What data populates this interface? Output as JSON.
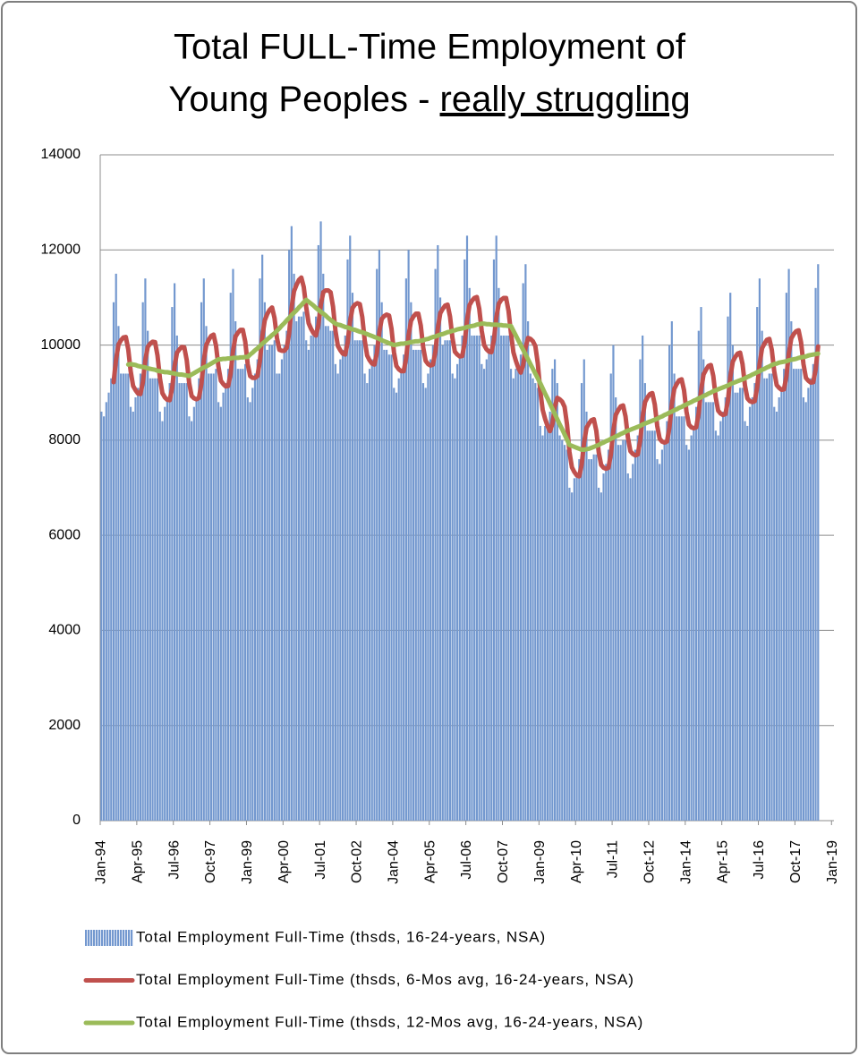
{
  "chart_data": {
    "type": "bar",
    "title": [
      "Total FULL-Time Employment of",
      "Young Peoples - "
    ],
    "title_underlined": "really struggling",
    "legend": "bottom",
    "grid": true,
    "ylim": [
      0,
      14000
    ],
    "yticks": [
      0,
      2000,
      4000,
      6000,
      8000,
      10000,
      12000,
      14000
    ],
    "categories": [
      "Jan-94",
      null,
      null,
      null,
      null,
      null,
      null,
      null,
      null,
      null,
      null,
      null,
      null,
      null,
      null,
      "Apr-95",
      null,
      null,
      null,
      null,
      null,
      null,
      null,
      null,
      null,
      null,
      null,
      null,
      null,
      null,
      "Jul-96",
      null,
      null,
      null,
      null,
      null,
      null,
      null,
      null,
      null,
      null,
      null,
      null,
      null,
      null,
      "Oct-97",
      null,
      null,
      null,
      null,
      null,
      null,
      null,
      null,
      null,
      null,
      null,
      null,
      null,
      null,
      "Jan-99",
      null,
      null,
      null,
      null,
      null,
      null,
      null,
      null,
      null,
      null,
      null,
      null,
      null,
      null,
      "Apr-00",
      null,
      null,
      null,
      null,
      null,
      null,
      null,
      null,
      null,
      null,
      null,
      null,
      null,
      null,
      "Jul-01",
      null,
      null,
      null,
      null,
      null,
      null,
      null,
      null,
      null,
      null,
      null,
      null,
      null,
      null,
      "Oct-02",
      null,
      null,
      null,
      null,
      null,
      null,
      null,
      null,
      null,
      null,
      null,
      null,
      null,
      null,
      "Jan-04",
      null,
      null,
      null,
      null,
      null,
      null,
      null,
      null,
      null,
      null,
      null,
      null,
      null,
      null,
      "Apr-05",
      null,
      null,
      null,
      null,
      null,
      null,
      null,
      null,
      null,
      null,
      null,
      null,
      null,
      null,
      "Jul-06",
      null,
      null,
      null,
      null,
      null,
      null,
      null,
      null,
      null,
      null,
      null,
      null,
      null,
      null,
      "Oct-07",
      null,
      null,
      null,
      null,
      null,
      null,
      null,
      null,
      null,
      null,
      null,
      null,
      null,
      null,
      "Jan-09",
      null,
      null,
      null,
      null,
      null,
      null,
      null,
      null,
      null,
      null,
      null,
      null,
      null,
      null,
      "Apr-10",
      null,
      null,
      null,
      null,
      null,
      null,
      null,
      null,
      null,
      null,
      null,
      null,
      null,
      null,
      "Jul-11",
      null,
      null,
      null,
      null,
      null,
      null,
      null,
      null,
      null,
      null,
      null,
      null,
      null,
      null,
      "Oct-12",
      null,
      null,
      null,
      null,
      null,
      null,
      null,
      null,
      null,
      null,
      null,
      null,
      null,
      null,
      "Jan-14",
      null,
      null,
      null,
      null,
      null,
      null,
      null,
      null,
      null,
      null,
      null,
      null,
      null,
      null,
      "Apr-15",
      null,
      null,
      null,
      null,
      null,
      null,
      null,
      null,
      null,
      null,
      null,
      null,
      null,
      null,
      "Jul-16",
      null,
      null,
      null,
      null,
      null,
      null,
      null,
      null,
      null,
      null,
      null,
      null,
      null,
      null,
      "Oct-17",
      null,
      null,
      null,
      null,
      null,
      null,
      null,
      null,
      null,
      null,
      null,
      null,
      null,
      null,
      "Jan-19"
    ],
    "series": [
      {
        "name": "Total Employment Full-Time (thsds, 16-24-years, NSA)",
        "type": "bar",
        "color": "#7398cf",
        "values": [
          8600,
          8500,
          8800,
          9000,
          9300,
          10900,
          11500,
          10400,
          9400,
          9400,
          9400,
          9400,
          8700,
          8600,
          8900,
          9100,
          9400,
          10900,
          11400,
          10300,
          9300,
          9300,
          9300,
          9300,
          8600,
          8400,
          8700,
          8900,
          9200,
          10800,
          11300,
          10200,
          9200,
          9200,
          9200,
          9200,
          8500,
          8400,
          8700,
          8900,
          9300,
          10900,
          11400,
          10400,
          9400,
          9400,
          9400,
          9500,
          8800,
          8700,
          9000,
          9200,
          9500,
          11100,
          11600,
          10500,
          9500,
          9500,
          9500,
          9600,
          8900,
          8800,
          9100,
          9400,
          9700,
          11400,
          11900,
          10900,
          9900,
          10000,
          10000,
          10100,
          9400,
          9400,
          9700,
          10000,
          10300,
          12000,
          12500,
          11500,
          10500,
          10600,
          10600,
          10700,
          10100,
          9900,
          10200,
          10300,
          10600,
          12100,
          12600,
          11500,
          10400,
          10400,
          10300,
          10300,
          9600,
          9400,
          9700,
          9900,
          10200,
          11800,
          12300,
          11100,
          10100,
          10100,
          10100,
          10100,
          9400,
          9200,
          9500,
          9700,
          10000,
          11600,
          12000,
          10900,
          9900,
          9900,
          9800,
          9800,
          9100,
          9000,
          9300,
          9500,
          9800,
          11400,
          12000,
          10900,
          9900,
          9900,
          9900,
          9900,
          9200,
          9100,
          9400,
          9700,
          10000,
          11600,
          12100,
          11000,
          10000,
          10100,
          10100,
          10100,
          9400,
          9300,
          9600,
          9800,
          10200,
          11800,
          12300,
          11200,
          10200,
          10200,
          10200,
          10200,
          9600,
          9500,
          9700,
          9900,
          10200,
          11800,
          12300,
          11200,
          10200,
          10200,
          10200,
          10200,
          9500,
          9300,
          9500,
          9600,
          9800,
          11300,
          11700,
          10500,
          9400,
          9300,
          9200,
          9100,
          8300,
          8100,
          8300,
          8400,
          8600,
          9500,
          9700,
          9200,
          8100,
          8000,
          7900,
          7800,
          7000,
          6900,
          7200,
          7300,
          7600,
          9200,
          9700,
          8600,
          7600,
          7600,
          7700,
          7700,
          7000,
          6900,
          7300,
          7500,
          7800,
          9400,
          10000,
          8900,
          7900,
          7900,
          8000,
          8000,
          7300,
          7200,
          7500,
          7800,
          8100,
          9700,
          10200,
          9200,
          8200,
          8200,
          8200,
          8200,
          7600,
          7500,
          7800,
          8000,
          8400,
          10000,
          10500,
          9400,
          8500,
          8500,
          8500,
          8500,
          7900,
          7800,
          8100,
          8300,
          8700,
          10300,
          10800,
          9700,
          8800,
          8800,
          8800,
          8800,
          8200,
          8100,
          8400,
          8600,
          8900,
          10600,
          11100,
          10000,
          9000,
          9000,
          9100,
          9100,
          8400,
          8300,
          8700,
          8900,
          9200,
          10800,
          11400,
          10300,
          9300,
          9300,
          9400,
          9400,
          8700,
          8600,
          8900,
          9100,
          9500,
          11100,
          11600,
          10500,
          9500,
          9500,
          9500,
          9500,
          8900,
          8800,
          9100,
          9300,
          9600,
          11200,
          11700,
          null,
          null,
          null,
          null,
          null,
          null
        ]
      },
      {
        "name": "Total Employment Full-Time (thsds, 6-Mos avg, 16-24-years, NSA)",
        "type": "line",
        "color": "#c0504d",
        "values": [
          null,
          null,
          null,
          null,
          null,
          9220,
          9700,
          10010,
          10100,
          10160,
          10170,
          9910,
          9450,
          9140,
          9050,
          8980,
          8970,
          9220,
          9680,
          9960,
          10030,
          10070,
          10060,
          9780,
          9300,
          8990,
          8900,
          8850,
          8840,
          9090,
          9550,
          9840,
          9910,
          9960,
          9950,
          9680,
          9200,
          8930,
          8880,
          8860,
          8890,
          9180,
          9680,
          10000,
          10110,
          10190,
          10220,
          9990,
          9550,
          9250,
          9180,
          9130,
          9140,
          9400,
          9880,
          10180,
          10260,
          10320,
          10320,
          10070,
          9600,
          9350,
          9310,
          9310,
          9350,
          9660,
          10180,
          10520,
          10650,
          10740,
          10790,
          10570,
          10150,
          9900,
          9880,
          9880,
          9940,
          10250,
          10780,
          11130,
          11260,
          11370,
          11420,
          11220,
          10800,
          10460,
          10340,
          10250,
          10200,
          10420,
          10850,
          11110,
          11150,
          11150,
          11110,
          10810,
          10300,
          9980,
          9890,
          9820,
          9800,
          10050,
          10500,
          10780,
          10850,
          10880,
          10860,
          10590,
          10100,
          9780,
          9680,
          9610,
          9590,
          9830,
          10280,
          10550,
          10610,
          10640,
          10620,
          10340,
          9850,
          9560,
          9490,
          9450,
          9450,
          9720,
          10200,
          10510,
          10600,
          10660,
          10660,
          10410,
          9950,
          9670,
          9600,
          9570,
          9590,
          9860,
          10350,
          10670,
          10760,
          10830,
          10850,
          10600,
          10150,
          9860,
          9800,
          9760,
          9770,
          10040,
          10530,
          10840,
          10930,
          10990,
          11010,
          10760,
          10300,
          10000,
          9910,
          9860,
          9850,
          10110,
          10580,
          10870,
          10950,
          10990,
          10990,
          10720,
          10250,
          9850,
          9670,
          9520,
          9420,
          9580,
          9950,
          10150,
          10130,
          10080,
          9980,
          9620,
          9050,
          8640,
          8450,
          8300,
          8190,
          8340,
          8700,
          8890,
          8860,
          8810,
          8700,
          8330,
          7750,
          7430,
          7330,
          7260,
          7240,
          7480,
          7950,
          8260,
          8350,
          8420,
          8440,
          8200,
          7750,
          7480,
          7420,
          7400,
          7420,
          7710,
          8200,
          8530,
          8630,
          8710,
          8730,
          8500,
          8050,
          7770,
          7710,
          7680,
          7700,
          7980,
          8480,
          8800,
          8900,
          8970,
          8990,
          8750,
          8300,
          8030,
          7970,
          7950,
          7970,
          8260,
          8750,
          9080,
          9180,
          9260,
          9280,
          9050,
          8600,
          8330,
          8270,
          8250,
          8270,
          8560,
          9050,
          9380,
          9480,
          9560,
          9580,
          9350,
          8900,
          8620,
          8560,
          8530,
          8550,
          8830,
          9330,
          9650,
          9750,
          9820,
          9840,
          9600,
          9150,
          8880,
          8820,
          8800,
          8820,
          9110,
          9600,
          9930,
          10030,
          10110,
          10130,
          9900,
          9450,
          9160,
          9100,
          9060,
          9070,
          9340,
          9830,
          10140,
          10230,
          10290,
          10310,
          10060,
          9600,
          9310,
          9250,
          9210,
          9220,
          9490,
          9970,
          null,
          null,
          null,
          null,
          null,
          null
        ]
      },
      {
        "name": "Total Employment Full-Time (thsds, 12-Mos avg, 16-24-years, NSA)",
        "type": "line",
        "color": "#9bbb59",
        "values": [
          null,
          null,
          null,
          null,
          null,
          null,
          null,
          null,
          null,
          null,
          null,
          9590,
          9600,
          9590,
          9580,
          9560,
          9550,
          9540,
          9530,
          9510,
          9500,
          9490,
          9480,
          9460,
          9450,
          9440,
          9430,
          9430,
          9420,
          9410,
          9400,
          9390,
          9380,
          9380,
          9370,
          9360,
          9350,
          9380,
          9410,
          9440,
          9470,
          9500,
          9530,
          9550,
          9580,
          9610,
          9640,
          9670,
          9700,
          9700,
          9710,
          9710,
          9720,
          9720,
          9730,
          9730,
          9730,
          9740,
          9740,
          9750,
          9750,
          9800,
          9840,
          9890,
          9930,
          9980,
          10030,
          10070,
          10120,
          10160,
          10210,
          10250,
          10300,
          10350,
          10410,
          10460,
          10520,
          10570,
          10630,
          10680,
          10730,
          10790,
          10840,
          10900,
          10950,
          10910,
          10870,
          10830,
          10780,
          10740,
          10700,
          10660,
          10620,
          10570,
          10530,
          10490,
          10450,
          10430,
          10420,
          10400,
          10380,
          10370,
          10350,
          10330,
          10320,
          10300,
          10280,
          10270,
          10250,
          10230,
          10210,
          10190,
          10170,
          10150,
          10130,
          10100,
          10080,
          10060,
          10040,
          10020,
          10000,
          10010,
          10020,
          10030,
          10030,
          10040,
          10050,
          10060,
          10070,
          10080,
          10080,
          10090,
          10100,
          10120,
          10130,
          10150,
          10170,
          10180,
          10200,
          10220,
          10230,
          10250,
          10270,
          10280,
          10300,
          10310,
          10330,
          10340,
          10350,
          10360,
          10380,
          10390,
          10400,
          10410,
          10430,
          10440,
          10450,
          10450,
          10440,
          10440,
          10430,
          10430,
          10430,
          10420,
          10420,
          10410,
          10410,
          10400,
          10400,
          10300,
          10200,
          10100,
          10000,
          9900,
          9800,
          9700,
          9600,
          9500,
          9400,
          9300,
          9200,
          9090,
          8980,
          8880,
          8770,
          8660,
          8550,
          8440,
          8330,
          8230,
          8120,
          8010,
          7900,
          7880,
          7860,
          7840,
          7820,
          7800,
          7800,
          7810,
          7820,
          7840,
          7860,
          7880,
          7900,
          7930,
          7950,
          7980,
          8000,
          8030,
          8050,
          8080,
          8100,
          8130,
          8150,
          8180,
          8200,
          8220,
          8240,
          8260,
          8280,
          8300,
          8330,
          8350,
          8370,
          8390,
          8410,
          8430,
          8450,
          8480,
          8500,
          8530,
          8550,
          8580,
          8600,
          8630,
          8650,
          8680,
          8700,
          8730,
          8750,
          8780,
          8800,
          8830,
          8850,
          8880,
          8900,
          8930,
          8950,
          8980,
          9000,
          9030,
          9050,
          9070,
          9090,
          9110,
          9130,
          9150,
          9180,
          9200,
          9220,
          9240,
          9260,
          9280,
          9300,
          9330,
          9350,
          9380,
          9400,
          9430,
          9450,
          9480,
          9500,
          9530,
          9550,
          9580,
          9600,
          9610,
          9630,
          9640,
          9650,
          9660,
          9680,
          9690,
          9700,
          9710,
          9730,
          9740,
          9750,
          9760,
          9780,
          9790,
          9800,
          9810,
          9820,
          null,
          null,
          null,
          null,
          null,
          null
        ]
      }
    ]
  }
}
